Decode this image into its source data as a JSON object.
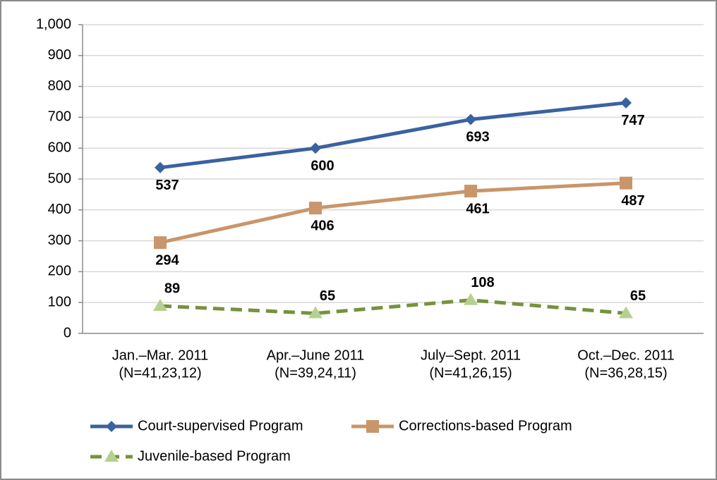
{
  "chart_data": {
    "type": "line",
    "categories": [
      [
        "Jan.–Mar. 2011",
        "(N=41,23,12)"
      ],
      [
        "Apr.–June 2011",
        "(N=39,24,11)"
      ],
      [
        "July–Sept. 2011",
        "(N=41,26,15)"
      ],
      [
        "Oct.–Dec. 2011",
        "(N=36,28,15)"
      ]
    ],
    "series": [
      {
        "name": "Court-supervised Program",
        "color": "#3b62a0",
        "marker": "diamond",
        "dashed": false,
        "label_position": "below",
        "values": [
          537,
          600,
          693,
          747
        ]
      },
      {
        "name": "Corrections-based Program",
        "color": "#c9956a",
        "marker": "square",
        "dashed": false,
        "label_position": "below",
        "values": [
          294,
          406,
          461,
          487
        ]
      },
      {
        "name": "Juvenile-based Program",
        "color": "#76923c",
        "marker_color": "#b6d08f",
        "marker": "triangle",
        "dashed": true,
        "label_position": "above",
        "values": [
          89,
          65,
          108,
          65
        ]
      }
    ],
    "ylim": [
      0,
      1000
    ],
    "yticks": [
      0,
      100,
      200,
      300,
      400,
      500,
      600,
      700,
      800,
      900,
      {
        "value": 1000,
        "label": "1,000"
      }
    ],
    "grid": true,
    "legend": "bottom"
  }
}
